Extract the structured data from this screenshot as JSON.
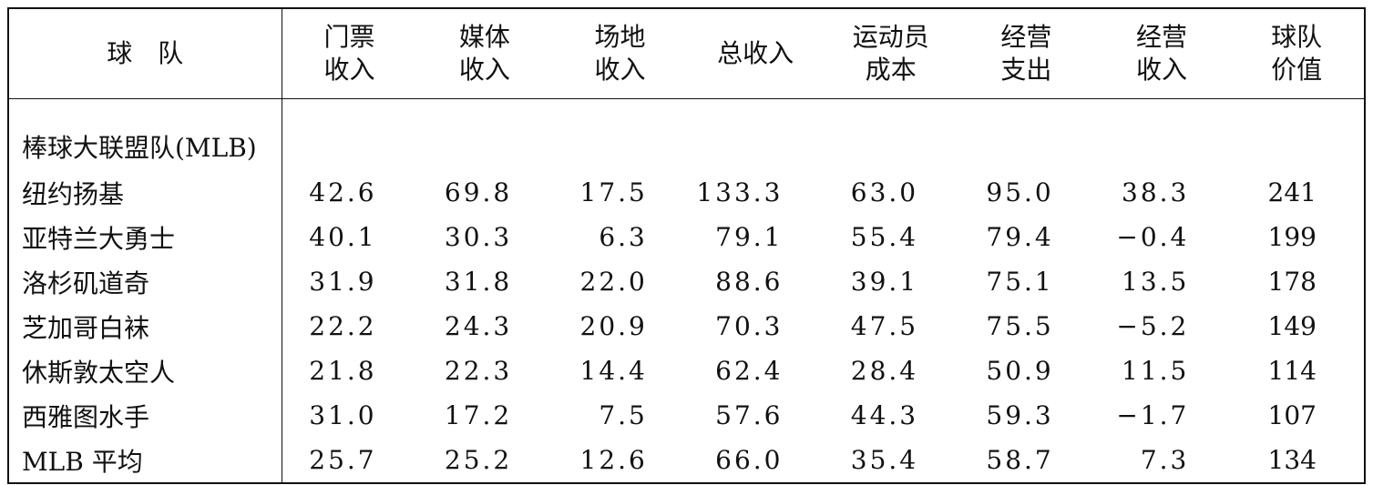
{
  "table": {
    "header": [
      [
        "球　队"
      ],
      [
        "门票",
        "收入"
      ],
      [
        "媒体",
        "收入"
      ],
      [
        "场地",
        "收入"
      ],
      [
        "总收入"
      ],
      [
        "运动员",
        "成本"
      ],
      [
        "经营",
        "支出"
      ],
      [
        "经营",
        "收入"
      ],
      [
        "球队",
        "价值"
      ]
    ],
    "section": "棒球大联盟队(MLB)",
    "rows": [
      [
        "纽约扬基",
        "42.6",
        "69.8",
        "17.5",
        "133.3",
        "63.0",
        "95.0",
        "38.3",
        "241"
      ],
      [
        "亚特兰大勇士",
        "40.1",
        "30.3",
        "6.3",
        "79.1",
        "55.4",
        "79.4",
        "−0.4",
        "199"
      ],
      [
        "洛杉矶道奇",
        "31.9",
        "31.8",
        "22.0",
        "88.6",
        "39.1",
        "75.1",
        "13.5",
        "178"
      ],
      [
        "芝加哥白袜",
        "22.2",
        "24.3",
        "20.9",
        "70.3",
        "47.5",
        "75.5",
        "−5.2",
        "149"
      ],
      [
        "休斯敦太空人",
        "21.8",
        "22.3",
        "14.4",
        "62.4",
        "28.4",
        "50.9",
        "11.5",
        "114"
      ],
      [
        "西雅图水手",
        "31.0",
        "17.2",
        "7.5",
        "57.6",
        "44.3",
        "59.3",
        "−1.7",
        "107"
      ],
      [
        "MLB 平均",
        "25.7",
        "25.2",
        "12.6",
        "66.0",
        "35.4",
        "58.7",
        "7.3",
        "134"
      ]
    ]
  }
}
